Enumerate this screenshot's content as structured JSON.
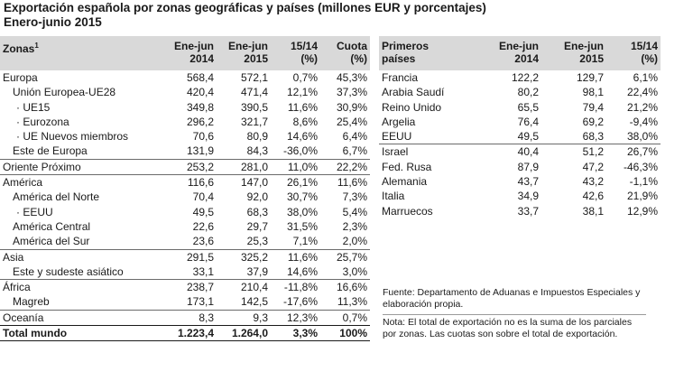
{
  "title": "Exportación española por zonas geográficas y países (millones EUR y porcentajes)",
  "subtitle": "Enero-junio 2015",
  "zones": {
    "headers": {
      "zona": "Zonas",
      "sup": "1",
      "c1": [
        "Ene-jun",
        "2014"
      ],
      "c2": [
        "Ene-jun",
        "2015"
      ],
      "c3": [
        "15/14",
        "(%)"
      ],
      "c4": [
        "Cuota",
        "(%)"
      ]
    },
    "rows": [
      {
        "name": "Europa",
        "indent": 0,
        "sep": false,
        "v": [
          "568,4",
          "572,1",
          "0,7%",
          "45,3%"
        ]
      },
      {
        "name": "Unión Europea-UE28",
        "indent": 1,
        "sep": false,
        "v": [
          "420,4",
          "471,4",
          "12,1%",
          "37,3%"
        ]
      },
      {
        "name": "· UE15",
        "indent": 2,
        "sep": false,
        "v": [
          "349,8",
          "390,5",
          "11,6%",
          "30,9%"
        ]
      },
      {
        "name": "· Eurozona",
        "indent": 2,
        "sep": false,
        "v": [
          "296,2",
          "321,7",
          "8,6%",
          "25,4%"
        ]
      },
      {
        "name": "· UE Nuevos miembros",
        "indent": 2,
        "sep": false,
        "v": [
          "70,6",
          "80,9",
          "14,6%",
          "6,4%"
        ]
      },
      {
        "name": "Este de Europa",
        "indent": 1,
        "sep": false,
        "v": [
          "131,9",
          "84,3",
          "-36,0%",
          "6,7%"
        ]
      },
      {
        "name": "Oriente Próximo",
        "indent": 0,
        "sep": true,
        "v": [
          "253,2",
          "281,0",
          "11,0%",
          "22,2%"
        ]
      },
      {
        "name": "América",
        "indent": 0,
        "sep": true,
        "v": [
          "116,6",
          "147,0",
          "26,1%",
          "11,6%"
        ]
      },
      {
        "name": "América del Norte",
        "indent": 1,
        "sep": false,
        "v": [
          "70,4",
          "92,0",
          "30,7%",
          "7,3%"
        ]
      },
      {
        "name": "· EEUU",
        "indent": 2,
        "sep": false,
        "v": [
          "49,5",
          "68,3",
          "38,0%",
          "5,4%"
        ]
      },
      {
        "name": "América Central",
        "indent": 1,
        "sep": false,
        "v": [
          "22,6",
          "29,7",
          "31,5%",
          "2,3%"
        ]
      },
      {
        "name": "América del Sur",
        "indent": 1,
        "sep": false,
        "v": [
          "23,6",
          "25,3",
          "7,1%",
          "2,0%"
        ]
      },
      {
        "name": "Asia",
        "indent": 0,
        "sep": true,
        "v": [
          "291,5",
          "325,2",
          "11,6%",
          "25,7%"
        ]
      },
      {
        "name": "Este y sudeste asiático",
        "indent": 1,
        "sep": false,
        "v": [
          "33,1",
          "37,9",
          "14,6%",
          "3,0%"
        ]
      },
      {
        "name": "África",
        "indent": 0,
        "sep": true,
        "v": [
          "238,7",
          "210,4",
          "-11,8%",
          "16,6%"
        ]
      },
      {
        "name": "Magreb",
        "indent": 1,
        "sep": false,
        "v": [
          "173,1",
          "142,5",
          "-17,6%",
          "11,3%"
        ]
      },
      {
        "name": "Oceanía",
        "indent": 0,
        "sep": true,
        "v": [
          "8,3",
          "9,3",
          "12,3%",
          "0,7%"
        ]
      }
    ],
    "total": {
      "name": "Total mundo",
      "v": [
        "1.223,4",
        "1.264,0",
        "3,3%",
        "100%"
      ]
    }
  },
  "countries": {
    "headers": {
      "pais": [
        "Primeros",
        "países"
      ],
      "c1": [
        "Ene-jun",
        "2014"
      ],
      "c2": [
        "Ene-jun",
        "2015"
      ],
      "c3": [
        "15/14",
        "(%)"
      ]
    },
    "rows": [
      {
        "name": "Francia",
        "sep": false,
        "v": [
          "122,2",
          "129,7",
          "6,1%"
        ]
      },
      {
        "name": "Arabia Saudí",
        "sep": false,
        "v": [
          "80,2",
          "98,1",
          "22,4%"
        ]
      },
      {
        "name": "Reino Unido",
        "sep": false,
        "v": [
          "65,5",
          "79,4",
          "21,2%"
        ]
      },
      {
        "name": "Argelia",
        "sep": false,
        "v": [
          "76,4",
          "69,2",
          "-9,4%"
        ]
      },
      {
        "name": "EEUU",
        "sep": false,
        "v": [
          "49,5",
          "68,3",
          "38,0%"
        ]
      },
      {
        "name": "Israel",
        "sep": true,
        "v": [
          "40,4",
          "51,2",
          "26,7%"
        ]
      },
      {
        "name": "Fed. Rusa",
        "sep": false,
        "v": [
          "87,9",
          "47,2",
          "-46,3%"
        ]
      },
      {
        "name": "Alemania",
        "sep": false,
        "v": [
          "43,7",
          "43,2",
          "-1,1%"
        ]
      },
      {
        "name": "Italia",
        "sep": false,
        "v": [
          "34,9",
          "42,6",
          "21,9%"
        ]
      },
      {
        "name": "Marruecos",
        "sep": false,
        "v": [
          "33,7",
          "38,1",
          "12,9%"
        ]
      }
    ]
  },
  "source": "Fuente: Departamento de Aduanas e Impuestos Especiales y elaboración propia.",
  "note": "Nota: El total de exportación no es la suma de los parciales por zonas. Las cuotas son sobre el total de exportación."
}
